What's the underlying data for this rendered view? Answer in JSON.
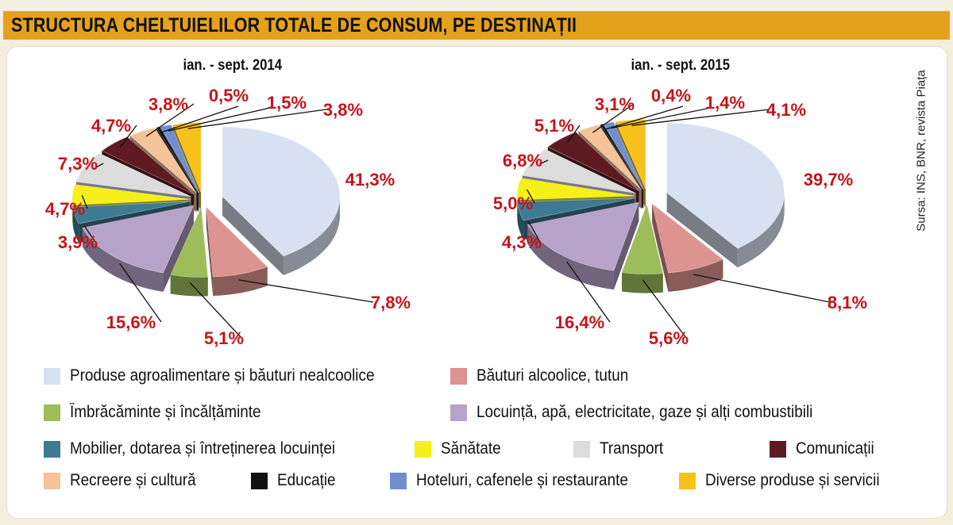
{
  "title": "STRUCTURA CHELTUIELILOR TOTALE DE CONSUM, PE DESTINAȚII",
  "source": "Sursa: INS, BNR, revista Piața",
  "categories": [
    {
      "label": "Produse agroalimentare și băuturi nealcoolice",
      "color": "#d8e1f1"
    },
    {
      "label": "Băuturi alcoolice, tutun",
      "color": "#dd9490"
    },
    {
      "label": "Îmbrăcăminte și încălțăminte",
      "color": "#9cbd5a"
    },
    {
      "label": "Locuință, apă, electricitate, gaze și alți combustibili",
      "color": "#b7a3c9"
    },
    {
      "label": "Mobilier, dotarea și întreținerea locuinței",
      "color": "#3f7a93"
    },
    {
      "label": "Sănătate",
      "color": "#f7ef19"
    },
    {
      "label": "Transport",
      "color": "#dcdcdc"
    },
    {
      "label": "Comunicații",
      "color": "#5e1b22"
    },
    {
      "label": "Recreere și cultură",
      "color": "#f6c297"
    },
    {
      "label": "Educație",
      "color": "#111111"
    },
    {
      "label": "Hoteluri, cafenele și restaurante",
      "color": "#6e8fd0"
    },
    {
      "label": "Diverse produse și servicii",
      "color": "#f6c11a"
    }
  ],
  "chart_data": [
    {
      "type": "pie",
      "title": "ian. - sept. 2014",
      "categories": [
        "Produse agroalimentare și băuturi nealcoolice",
        "Băuturi alcoolice, tutun",
        "Îmbrăcăminte și încălțăminte",
        "Locuință, apă, electricitate, gaze și alți combustibili",
        "Mobilier, dotarea și întreținerea locuinței",
        "Sănătate",
        "Transport",
        "Comunicații",
        "Recreere și cultură",
        "Educație",
        "Hoteluri, cafenele și restaurante",
        "Diverse produse și servicii"
      ],
      "values": [
        41.3,
        7.8,
        5.1,
        15.6,
        3.9,
        4.7,
        7.3,
        4.7,
        3.8,
        0.5,
        1.5,
        3.8
      ],
      "labels": [
        "41,3%",
        "7,8%",
        "5,1%",
        "15,6%",
        "3,9%",
        "4,7%",
        "7,3%",
        "4,7%",
        "3,8%",
        "0,5%",
        "1,5%",
        "3,8%"
      ],
      "style": "3d-exploded"
    },
    {
      "type": "pie",
      "title": "ian. - sept. 2015",
      "categories": [
        "Produse agroalimentare și băuturi nealcoolice",
        "Băuturi alcoolice, tutun",
        "Îmbrăcăminte și încălțăminte",
        "Locuință, apă, electricitate, gaze și alți combustibili",
        "Mobilier, dotarea și întreținerea locuinței",
        "Sănătate",
        "Transport",
        "Comunicații",
        "Recreere și cultură",
        "Educație",
        "Hoteluri, cafenele și restaurante",
        "Diverse produse și servicii"
      ],
      "values": [
        39.7,
        8.1,
        5.6,
        16.4,
        4.3,
        5.0,
        6.8,
        5.1,
        3.1,
        0.4,
        1.4,
        4.1
      ],
      "labels": [
        "39,7%",
        "8,1%",
        "5,6%",
        "16,4%",
        "4,3%",
        "5,0%",
        "6,8%",
        "5,1%",
        "3,1%",
        "0,4%",
        "1,4%",
        "4,1%"
      ],
      "style": "3d-exploded"
    }
  ]
}
